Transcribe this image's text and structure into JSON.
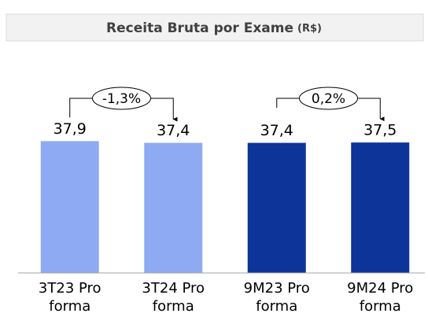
{
  "chart_data": {
    "type": "bar",
    "title": "Receita Bruta por Exame",
    "title_unit": "(R$)",
    "categories": [
      "3T23 Pro forma",
      "3T24 Pro forma",
      "9M23 Pro forma",
      "9M24 Pro forma"
    ],
    "values": [
      37.9,
      37.4,
      37.4,
      37.5
    ],
    "value_labels": [
      "37,9",
      "37,4",
      "37,4",
      "37,5"
    ],
    "colors": [
      "#8eaaf2",
      "#8eaaf2",
      "#0d3499",
      "#0d3499"
    ],
    "annotations": [
      "-1,3%",
      "0,2%"
    ],
    "ylim": [
      0,
      45
    ]
  }
}
